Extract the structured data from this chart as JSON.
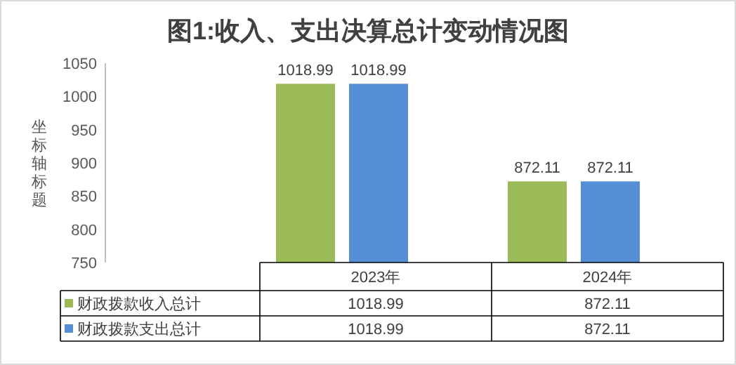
{
  "chart_data": {
    "type": "bar",
    "title": "图1:收入、支出决算总计变动情况图",
    "ylabel": "坐标轴标题",
    "categories": [
      "2023年",
      "2024年"
    ],
    "series": [
      {
        "name": "财政拨款收入总计",
        "color": "#9bbb59",
        "values": [
          1018.99,
          872.11
        ],
        "value_labels": [
          "1018.99",
          "872.11"
        ]
      },
      {
        "name": "财政拨款支出总计",
        "color": "#558ed5",
        "values": [
          1018.99,
          872.11
        ],
        "value_labels": [
          "1018.99",
          "872.11"
        ]
      }
    ],
    "ylim": [
      750,
      1050
    ],
    "yticks": [
      750,
      800,
      850,
      900,
      950,
      1000,
      1050
    ],
    "annotations": [
      "1018.99",
      "872.11",
      "1018.99",
      "872.11"
    ],
    "legend": "bottom",
    "grid": false
  }
}
